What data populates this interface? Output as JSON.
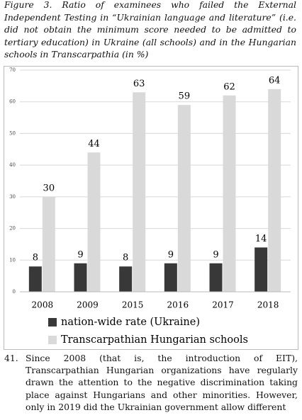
{
  "caption": "Figure 3. Ratio of examinees who failed the External Independent Testing in “Ukrainian language and literature” (i.e. did not obtain the minimum score needed to be admitted to tertiary education) in Ukraine (all schools) and in the Hungarian schools in Transcarpathia (in %)",
  "chart_data": {
    "type": "bar",
    "categories": [
      "2008",
      "2009",
      "2015",
      "2016",
      "2017",
      "2018"
    ],
    "series": [
      {
        "name": "nation-wide rate (Ukraine)",
        "color": "#383838",
        "values": [
          8,
          9,
          8,
          9,
          9,
          14
        ]
      },
      {
        "name": "Transcarpathian Hungarian schools",
        "color": "#d9d9d9",
        "values": [
          30,
          44,
          63,
          59,
          62,
          64
        ]
      }
    ],
    "ylim": [
      0,
      70
    ],
    "yticks": [
      0,
      10,
      20,
      30,
      40,
      50,
      60,
      70
    ],
    "grid": true,
    "legend": "bottom"
  },
  "paragraph": {
    "number": "41.",
    "text": "Since 2008 (that is, the introduction of EIT), Transcarpathian Hungarian organizations have regularly drawn the attention to the negative discrimination taking place against Hungarians and other minorities. However, only in 2019 did the Ukrainian government allow different"
  }
}
